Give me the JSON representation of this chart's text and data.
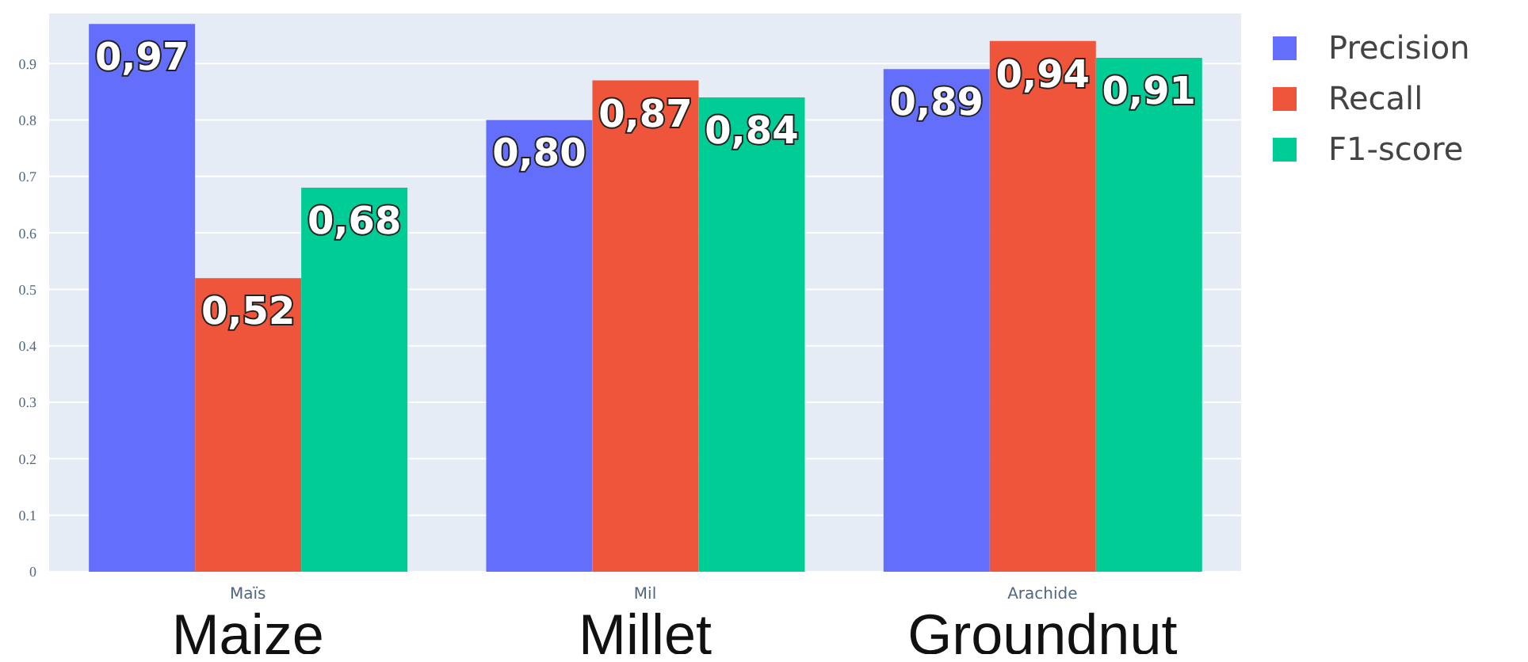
{
  "chart_data": {
    "type": "bar",
    "categories": [
      "Maïs",
      "Mil",
      "Arachide"
    ],
    "series": [
      {
        "name": "Precision",
        "color": "#636efa",
        "values": [
          0.97,
          0.8,
          0.89
        ],
        "value_labels": [
          "0,97",
          "0,80",
          "0,89"
        ]
      },
      {
        "name": "Recall",
        "color": "#ef553b",
        "values": [
          0.52,
          0.87,
          0.94
        ],
        "value_labels": [
          "0,52",
          "0,87",
          "0,94"
        ]
      },
      {
        "name": "F1-score",
        "color": "#00cc96",
        "values": [
          0.68,
          0.84,
          0.91
        ],
        "value_labels": [
          "0,68",
          "0,84",
          "0,91"
        ]
      }
    ],
    "annotations": [
      "Maize",
      "Millet",
      "Groundnut"
    ],
    "ylim": [
      0,
      0.99
    ],
    "yticks": [
      0,
      0.1,
      0.2,
      0.3,
      0.4,
      0.5,
      0.6,
      0.7,
      0.8,
      0.9
    ],
    "grid": "y",
    "legend": "top right"
  }
}
